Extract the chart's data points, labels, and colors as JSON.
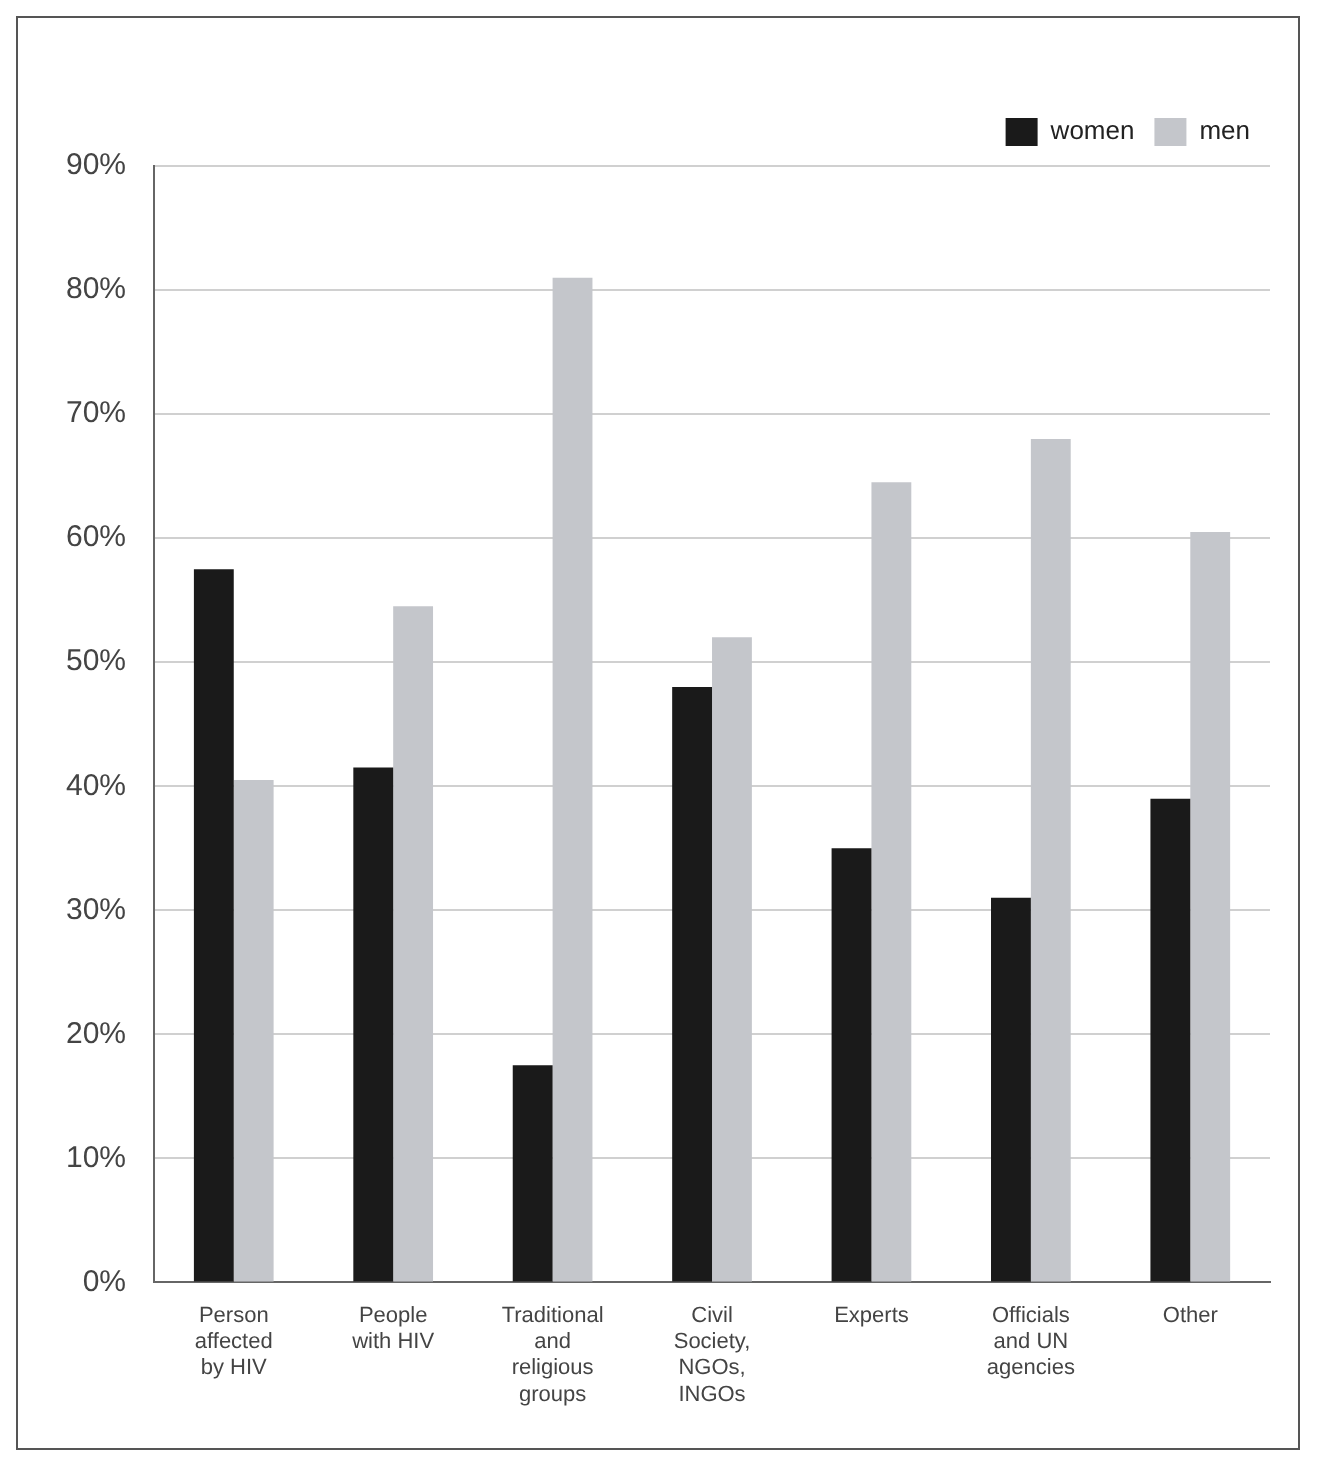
{
  "chart_data": {
    "type": "bar",
    "categories": [
      "Person affected by HIV",
      "People with HIV",
      "Traditional and religious groups",
      "Civil Society, NGOs, INGOs",
      "Experts",
      "Officials and UN agencies",
      "Other"
    ],
    "series": [
      {
        "name": "women",
        "color": "#1a1a1a",
        "values": [
          57.5,
          41.5,
          17.5,
          48,
          35,
          31,
          39
        ]
      },
      {
        "name": "men",
        "color": "#c4c6cb",
        "values": [
          40.5,
          54.5,
          81,
          52,
          64.5,
          68,
          60.5
        ]
      }
    ],
    "ylim": [
      0,
      90
    ],
    "yticks": [
      {
        "value": 0,
        "label": "0%"
      },
      {
        "value": 10,
        "label": "10%"
      },
      {
        "value": 20,
        "label": "20%"
      },
      {
        "value": 30,
        "label": "30%"
      },
      {
        "value": 40,
        "label": "40%"
      },
      {
        "value": 50,
        "label": "50%"
      },
      {
        "value": 60,
        "label": "60%"
      },
      {
        "value": 70,
        "label": "70%"
      },
      {
        "value": 80,
        "label": "80%"
      },
      {
        "value": 90,
        "label": "90%"
      }
    ],
    "grid": "y",
    "legend": "top right"
  }
}
